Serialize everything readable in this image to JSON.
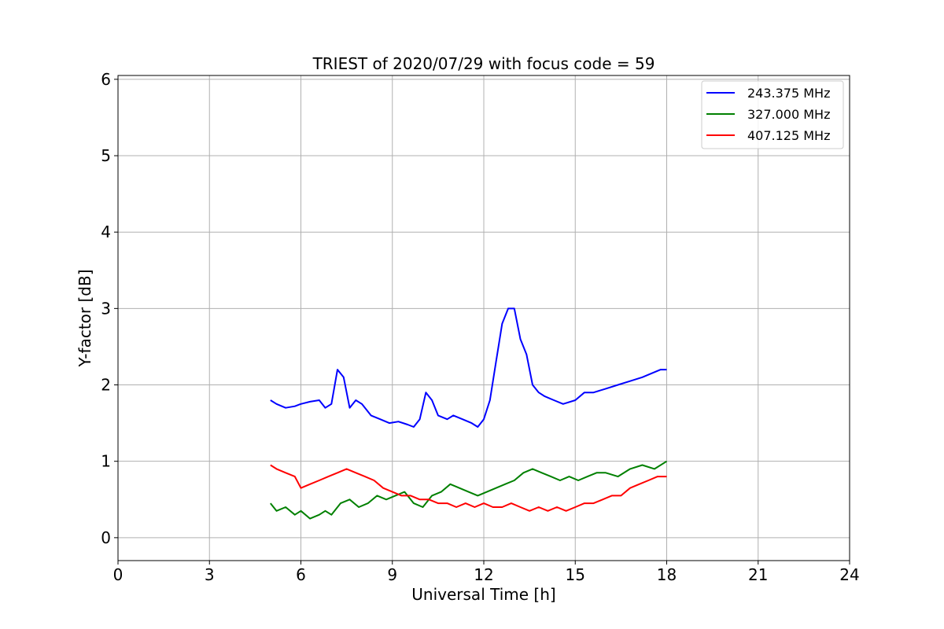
{
  "chart_data": {
    "type": "line",
    "title": "TRIEST of 2020/07/29 with focus code = 59",
    "xlabel": "Universal Time [h]",
    "ylabel": "Y-factor [dB]",
    "xlim": [
      0,
      24
    ],
    "ylim": [
      -0.3,
      6.05
    ],
    "xticks": [
      0,
      3,
      6,
      9,
      12,
      15,
      18,
      21,
      24
    ],
    "yticks": [
      0,
      1,
      2,
      3,
      4,
      5,
      6
    ],
    "grid": true,
    "legend_position": "top-right",
    "series": [
      {
        "name": "243.375 MHz",
        "color": "#0000ff",
        "x": [
          5.0,
          5.2,
          5.5,
          5.8,
          6.0,
          6.3,
          6.6,
          6.8,
          7.0,
          7.2,
          7.4,
          7.6,
          7.8,
          8.0,
          8.3,
          8.6,
          8.9,
          9.2,
          9.5,
          9.7,
          9.9,
          10.1,
          10.3,
          10.5,
          10.8,
          11.0,
          11.3,
          11.6,
          11.8,
          12.0,
          12.2,
          12.4,
          12.6,
          12.8,
          13.0,
          13.2,
          13.4,
          13.6,
          13.8,
          14.0,
          14.3,
          14.6,
          15.0,
          15.3,
          15.6,
          16.0,
          16.4,
          16.8,
          17.2,
          17.5,
          17.8,
          18.0
        ],
        "y": [
          1.8,
          1.75,
          1.7,
          1.72,
          1.75,
          1.78,
          1.8,
          1.7,
          1.75,
          2.2,
          2.1,
          1.7,
          1.8,
          1.75,
          1.6,
          1.55,
          1.5,
          1.52,
          1.48,
          1.45,
          1.55,
          1.9,
          1.8,
          1.6,
          1.55,
          1.6,
          1.55,
          1.5,
          1.45,
          1.55,
          1.8,
          2.3,
          2.8,
          3.0,
          3.0,
          2.6,
          2.4,
          2.0,
          1.9,
          1.85,
          1.8,
          1.75,
          1.8,
          1.9,
          1.9,
          1.95,
          2.0,
          2.05,
          2.1,
          2.15,
          2.2,
          2.2
        ]
      },
      {
        "name": "327.000 MHz",
        "color": "#008000",
        "x": [
          5.0,
          5.2,
          5.5,
          5.8,
          6.0,
          6.3,
          6.6,
          6.8,
          7.0,
          7.3,
          7.6,
          7.9,
          8.2,
          8.5,
          8.8,
          9.1,
          9.4,
          9.7,
          10.0,
          10.3,
          10.6,
          10.9,
          11.2,
          11.5,
          11.8,
          12.1,
          12.4,
          12.7,
          13.0,
          13.3,
          13.6,
          13.9,
          14.2,
          14.5,
          14.8,
          15.1,
          15.4,
          15.7,
          16.0,
          16.4,
          16.8,
          17.2,
          17.6,
          18.0
        ],
        "y": [
          0.45,
          0.35,
          0.4,
          0.3,
          0.35,
          0.25,
          0.3,
          0.35,
          0.3,
          0.45,
          0.5,
          0.4,
          0.45,
          0.55,
          0.5,
          0.55,
          0.6,
          0.45,
          0.4,
          0.55,
          0.6,
          0.7,
          0.65,
          0.6,
          0.55,
          0.6,
          0.65,
          0.7,
          0.75,
          0.85,
          0.9,
          0.85,
          0.8,
          0.75,
          0.8,
          0.75,
          0.8,
          0.85,
          0.85,
          0.8,
          0.9,
          0.95,
          0.9,
          1.0
        ]
      },
      {
        "name": "407.125 MHz",
        "color": "#ff0000",
        "x": [
          5.0,
          5.2,
          5.5,
          5.8,
          6.0,
          6.3,
          6.6,
          6.9,
          7.2,
          7.5,
          7.8,
          8.1,
          8.4,
          8.7,
          9.0,
          9.3,
          9.6,
          9.9,
          10.2,
          10.5,
          10.8,
          11.1,
          11.4,
          11.7,
          12.0,
          12.3,
          12.6,
          12.9,
          13.2,
          13.5,
          13.8,
          14.1,
          14.4,
          14.7,
          15.0,
          15.3,
          15.6,
          15.9,
          16.2,
          16.5,
          16.8,
          17.1,
          17.4,
          17.7,
          18.0
        ],
        "y": [
          0.95,
          0.9,
          0.85,
          0.8,
          0.65,
          0.7,
          0.75,
          0.8,
          0.85,
          0.9,
          0.85,
          0.8,
          0.75,
          0.65,
          0.6,
          0.55,
          0.55,
          0.5,
          0.5,
          0.45,
          0.45,
          0.4,
          0.45,
          0.4,
          0.45,
          0.4,
          0.4,
          0.45,
          0.4,
          0.35,
          0.4,
          0.35,
          0.4,
          0.35,
          0.4,
          0.45,
          0.45,
          0.5,
          0.55,
          0.55,
          0.65,
          0.7,
          0.75,
          0.8,
          0.8
        ]
      }
    ]
  }
}
